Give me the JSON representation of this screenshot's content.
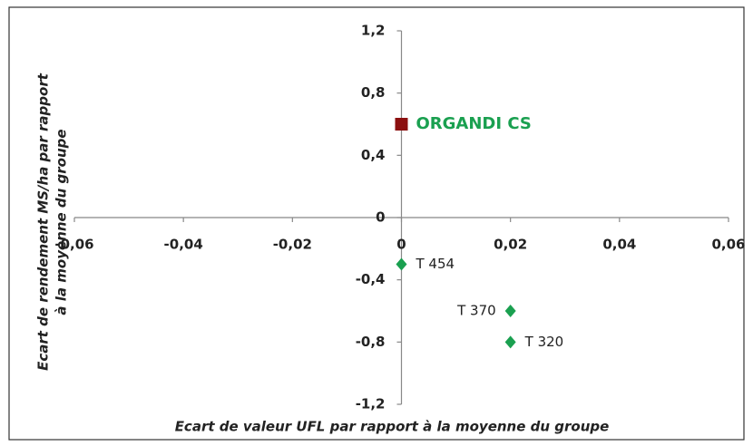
{
  "chart_data": {
    "type": "scatter",
    "xlabel": "Ecart de valeur UFL par rapport à la moyenne du groupe",
    "ylabel": [
      "Ecart de rendement MS/ha par rapport",
      "à la moyenne du groupe"
    ],
    "xlim": [
      -0.06,
      0.06
    ],
    "ylim": [
      -1.2,
      1.2
    ],
    "xticks": [
      {
        "value": -0.06,
        "label": "-0,06"
      },
      {
        "value": -0.04,
        "label": "-0,04"
      },
      {
        "value": -0.02,
        "label": "-0,02"
      },
      0,
      {
        "value": 0.02,
        "label": "0,02"
      },
      {
        "value": 0.04,
        "label": "0,04"
      },
      {
        "value": 0.06,
        "label": "0,06"
      }
    ],
    "yticks": [
      {
        "value": -1.2,
        "label": "-1,2"
      },
      {
        "value": -0.8,
        "label": "-0,8"
      },
      {
        "value": -0.4,
        "label": "-0,4"
      },
      0,
      {
        "value": 0.4,
        "label": "0,4"
      },
      {
        "value": 0.8,
        "label": "0,8"
      },
      {
        "value": 1.2,
        "label": "1,2"
      }
    ],
    "points": [
      {
        "label": "ORGANDI CS",
        "x": 0,
        "y": 0.6,
        "marker": "square",
        "color": "#8b0f0f",
        "label_color": "#1aa050"
      },
      {
        "label": "T 454",
        "x": 0,
        "y": -0.3,
        "marker": "diamond",
        "color": "#1aa050"
      },
      {
        "label": "T 370",
        "x": 0.02,
        "y": -0.6,
        "marker": "diamond",
        "color": "#1aa050"
      },
      {
        "label": "T 320",
        "x": 0.02,
        "y": -0.8,
        "marker": "diamond",
        "color": "#1aa050"
      }
    ]
  }
}
